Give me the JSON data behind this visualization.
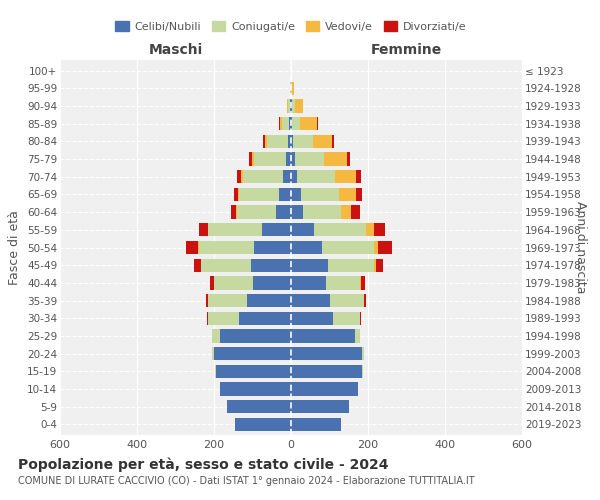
{
  "age_groups": [
    "0-4",
    "5-9",
    "10-14",
    "15-19",
    "20-24",
    "25-29",
    "30-34",
    "35-39",
    "40-44",
    "45-49",
    "50-54",
    "55-59",
    "60-64",
    "65-69",
    "70-74",
    "75-79",
    "80-84",
    "85-89",
    "90-94",
    "95-99",
    "100+"
  ],
  "birth_years": [
    "2019-2023",
    "2014-2018",
    "2009-2013",
    "2004-2008",
    "1999-2003",
    "1994-1998",
    "1989-1993",
    "1984-1988",
    "1979-1983",
    "1974-1978",
    "1969-1973",
    "1964-1968",
    "1959-1963",
    "1954-1958",
    "1949-1953",
    "1944-1948",
    "1939-1943",
    "1934-1938",
    "1929-1933",
    "1924-1928",
    "≤ 1923"
  ],
  "maschi_celibi": [
    145,
    165,
    185,
    195,
    200,
    185,
    135,
    115,
    100,
    105,
    95,
    75,
    40,
    30,
    20,
    12,
    8,
    4,
    2,
    1,
    0
  ],
  "maschi_coniugati": [
    0,
    0,
    0,
    2,
    5,
    20,
    80,
    100,
    100,
    130,
    145,
    140,
    100,
    105,
    105,
    85,
    55,
    20,
    5,
    2,
    0
  ],
  "maschi_vedovi": [
    0,
    0,
    0,
    0,
    0,
    0,
    0,
    0,
    0,
    0,
    2,
    0,
    2,
    2,
    5,
    5,
    5,
    5,
    3,
    0,
    0
  ],
  "maschi_divorziati": [
    0,
    0,
    0,
    0,
    0,
    0,
    2,
    5,
    10,
    18,
    30,
    25,
    15,
    12,
    10,
    8,
    5,
    2,
    0,
    0,
    0
  ],
  "femmine_celibi": [
    130,
    150,
    175,
    185,
    185,
    165,
    110,
    100,
    90,
    95,
    80,
    60,
    30,
    25,
    15,
    10,
    6,
    3,
    2,
    1,
    0
  ],
  "femmine_coniugati": [
    0,
    0,
    0,
    2,
    5,
    15,
    70,
    90,
    90,
    120,
    135,
    135,
    100,
    100,
    100,
    75,
    50,
    20,
    8,
    2,
    0
  ],
  "femmine_vedovi": [
    0,
    0,
    0,
    0,
    0,
    0,
    0,
    0,
    3,
    5,
    12,
    20,
    25,
    45,
    55,
    60,
    50,
    45,
    20,
    5,
    0
  ],
  "femmine_divorziati": [
    0,
    0,
    0,
    0,
    0,
    0,
    2,
    5,
    10,
    20,
    35,
    30,
    25,
    15,
    12,
    8,
    5,
    2,
    0,
    0,
    0
  ],
  "colors": {
    "celibi": "#4a72b0",
    "coniugati": "#c5d9a0",
    "vedovi": "#f5b942",
    "divorziati": "#cc1111"
  },
  "title": "Popolazione per età, sesso e stato civile - 2024",
  "subtitle": "COMUNE DI LURATE CACCIVIO (CO) - Dati ISTAT 1° gennaio 2024 - Elaborazione TUTTITALIA.IT",
  "xlabel_left": "Maschi",
  "xlabel_right": "Femmine",
  "ylabel_left": "Fasce di età",
  "ylabel_right": "Anni di nascita",
  "xlim": 600,
  "legend_labels": [
    "Celibi/Nubili",
    "Coniugati/e",
    "Vedovi/e",
    "Divorziati/e"
  ],
  "background_color": "#ffffff",
  "plot_bg": "#f0f0f0",
  "bar_height": 0.75
}
